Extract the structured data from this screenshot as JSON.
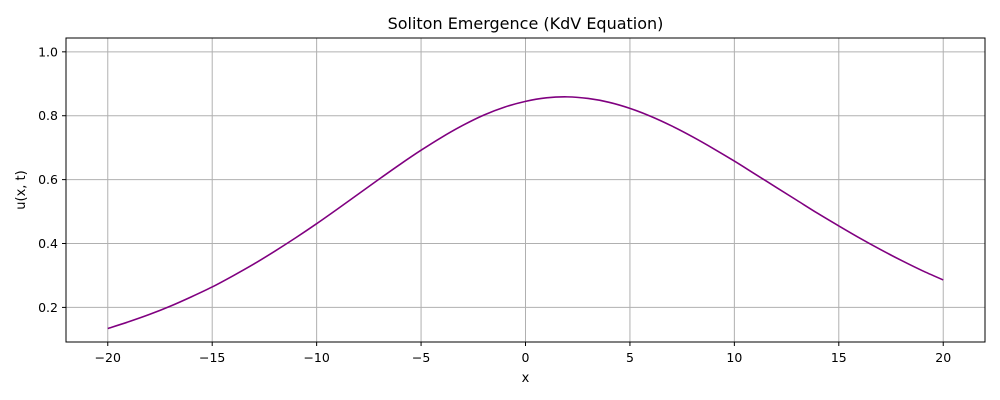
{
  "chart_data": {
    "type": "line",
    "title": "Soliton Emergence (KdV Equation)",
    "xlabel": "x",
    "ylabel": "u(x, t)",
    "xlim": [
      -22,
      22
    ],
    "ylim": [
      0.0917,
      1.0433
    ],
    "xticks": [
      -20,
      -15,
      -10,
      -5,
      0,
      5,
      10,
      15,
      20
    ],
    "xtick_labels": [
      "−20",
      "−15",
      "−10",
      "−5",
      "0",
      "5",
      "10",
      "15",
      "20"
    ],
    "yticks": [
      0.2,
      0.4,
      0.6,
      0.8,
      1.0
    ],
    "ytick_labels": [
      "0.2",
      "0.4",
      "0.6",
      "0.8",
      "1.0"
    ],
    "grid": true,
    "series": [
      {
        "color": "#800080",
        "x": [
          -20,
          -19,
          -18,
          -17,
          -16,
          -15,
          -14,
          -13,
          -12,
          -11,
          -10,
          -9,
          -8,
          -7,
          -6,
          -5,
          -4,
          -3,
          -2,
          -1,
          0,
          1,
          2,
          3,
          4,
          5,
          6,
          7,
          8,
          9,
          10,
          11,
          12,
          13,
          14,
          15,
          16,
          17,
          18,
          19,
          20
        ],
        "y": [
          0.134,
          0.155,
          0.178,
          0.204,
          0.233,
          0.264,
          0.299,
          0.336,
          0.376,
          0.418,
          0.462,
          0.508,
          0.555,
          0.602,
          0.648,
          0.692,
          0.733,
          0.77,
          0.802,
          0.827,
          0.845,
          0.856,
          0.859,
          0.854,
          0.842,
          0.823,
          0.798,
          0.768,
          0.734,
          0.697,
          0.658,
          0.617,
          0.576,
          0.535,
          0.494,
          0.455,
          0.417,
          0.381,
          0.347,
          0.315,
          0.286
        ]
      }
    ]
  }
}
